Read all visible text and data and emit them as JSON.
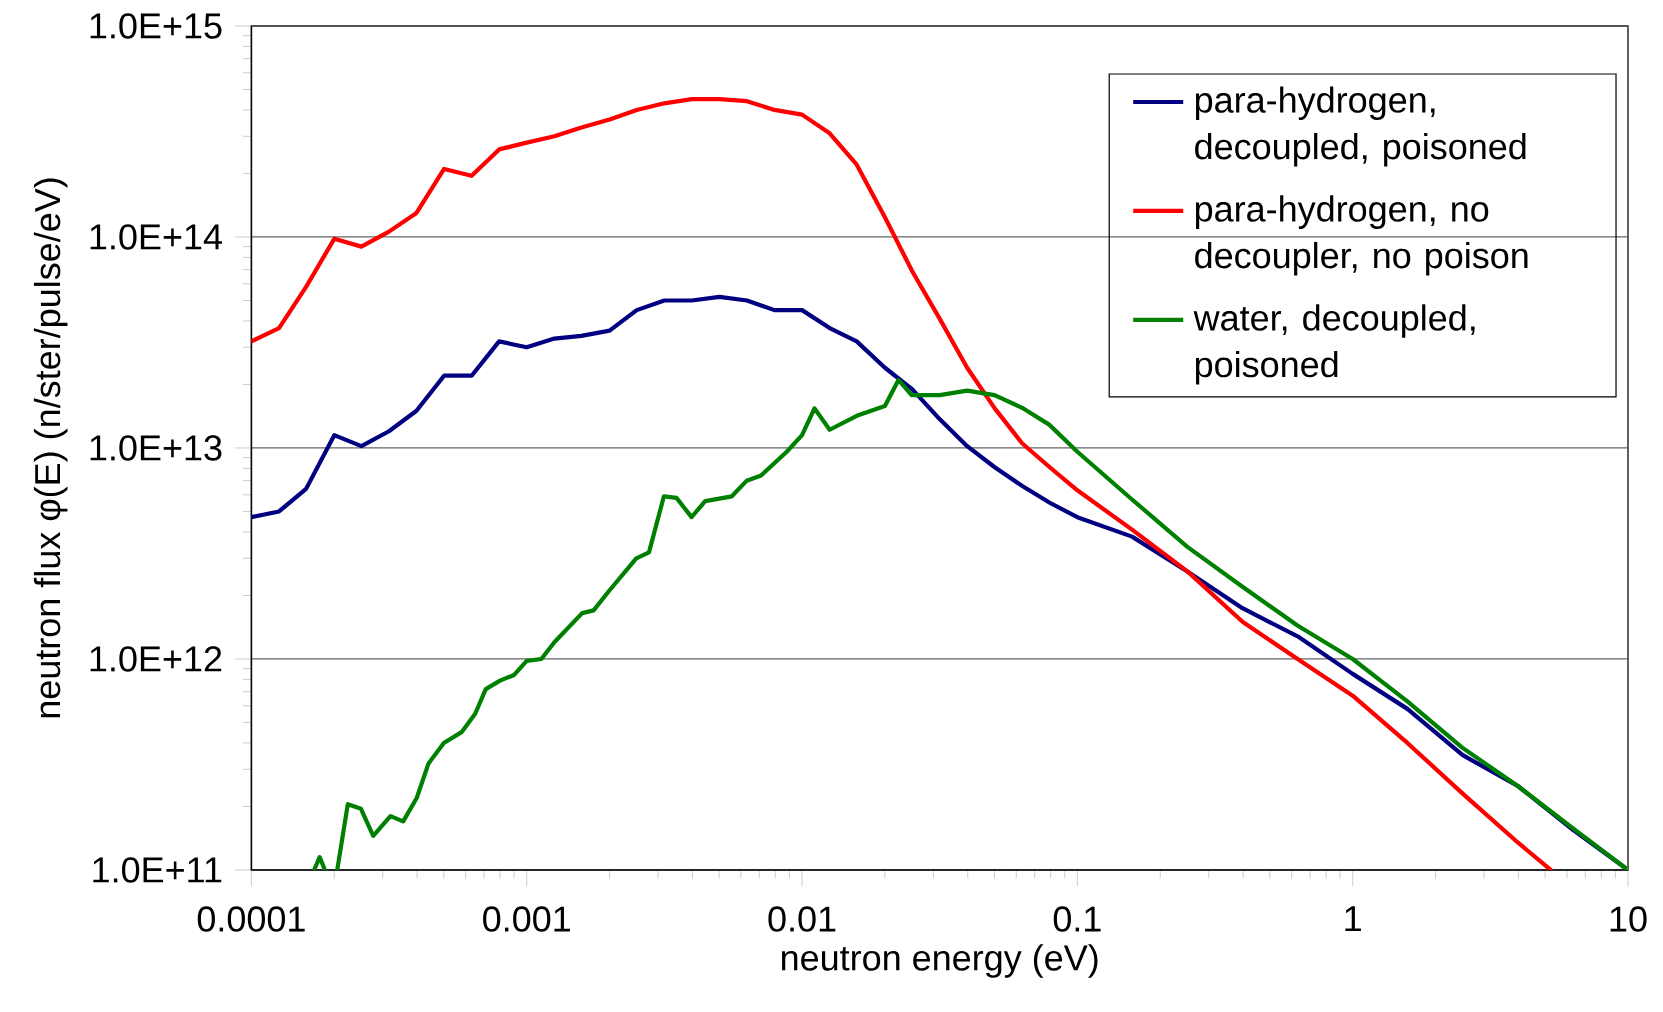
{
  "chart_data": {
    "type": "line",
    "xlabel": "neutron energy (eV)",
    "ylabel": "neutron flux φ(E) (n/ster/pulse/eV)",
    "log": "xy",
    "grid": "y",
    "legend": "top right",
    "xlim": [
      0.0001,
      10
    ],
    "xticks": [
      0.0001,
      0.001,
      0.01,
      0.1,
      1,
      10
    ],
    "ylim": [
      100000000000.0,
      1000000000000000.0
    ],
    "yticks": [
      {
        "value": 100000000000.0,
        "label": "1.0E+11"
      },
      {
        "value": 1000000000000.0,
        "label": "1.0E+12"
      },
      {
        "value": 10000000000000.0,
        "label": "1.0E+13"
      },
      {
        "value": 100000000000000.0,
        "label": "1.0E+14"
      },
      {
        "value": 1000000000000000.0,
        "label": "1.0E+15"
      }
    ],
    "series": [
      {
        "name": "para-hydrogen, decoupled, poisoned",
        "color": "#000080",
        "x": [
          0.0001,
          0.000126,
          0.000158,
          0.0002,
          0.000251,
          0.000316,
          0.000398,
          0.000501,
          0.000631,
          0.000794,
          0.001,
          0.00126,
          0.00158,
          0.002,
          0.00251,
          0.00316,
          0.00398,
          0.00501,
          0.00631,
          0.00794,
          0.01,
          0.0126,
          0.0158,
          0.02,
          0.0251,
          0.0316,
          0.0398,
          0.0501,
          0.0631,
          0.0794,
          0.1,
          0.158,
          0.251,
          0.398,
          0.631,
          1,
          1.58,
          2.51,
          3.98,
          6.31,
          10
        ],
        "values": [
          4700000000000.0,
          5000000000000.0,
          6400000000000.0,
          11500000000000.0,
          10200000000000.0,
          12000000000000.0,
          15000000000000.0,
          22000000000000.0,
          22000000000000.0,
          32000000000000.0,
          30000000000000.0,
          33000000000000.0,
          34000000000000.0,
          36000000000000.0,
          45000000000000.0,
          50000000000000.0,
          50000000000000.0,
          52000000000000.0,
          50000000000000.0,
          45000000000000.0,
          45000000000000.0,
          37000000000000.0,
          32000000000000.0,
          24000000000000.0,
          19000000000000.0,
          13700000000000.0,
          10200000000000.0,
          8100000000000.0,
          6600000000000.0,
          5500000000000.0,
          4700000000000.0,
          3800000000000.0,
          2600000000000.0,
          1740000000000.0,
          1280000000000.0,
          850000000000.0,
          580000000000.0,
          350000000000.0,
          250000000000.0,
          155000000000.0,
          100000000000.0
        ]
      },
      {
        "name": "para-hydrogen, no decoupler, no poison",
        "color": "#ff0000",
        "x": [
          0.0001,
          0.000126,
          0.000158,
          0.0002,
          0.000251,
          0.000316,
          0.000398,
          0.000501,
          0.000631,
          0.000794,
          0.001,
          0.00126,
          0.00158,
          0.002,
          0.00251,
          0.00316,
          0.00398,
          0.00501,
          0.00631,
          0.00794,
          0.01,
          0.0126,
          0.0158,
          0.02,
          0.0251,
          0.0316,
          0.0398,
          0.0501,
          0.0631,
          0.0794,
          0.1,
          0.158,
          0.251,
          0.398,
          0.631,
          1,
          1.58,
          2.51,
          3.98,
          5.24
        ],
        "values": [
          32000000000000.0,
          37000000000000.0,
          58000000000000.0,
          98000000000000.0,
          90000000000000.0,
          106000000000000.0,
          130000000000000.0,
          210000000000000.0,
          195000000000000.0,
          260000000000000.0,
          280000000000000.0,
          300000000000000.0,
          330000000000000.0,
          360000000000000.0,
          400000000000000.0,
          430000000000000.0,
          450000000000000.0,
          450000000000000.0,
          440000000000000.0,
          400000000000000.0,
          380000000000000.0,
          310000000000000.0,
          220000000000000.0,
          124000000000000.0,
          69000000000000.0,
          41000000000000.0,
          24000000000000.0,
          15400000000000.0,
          10500000000000.0,
          8100000000000.0,
          6300000000000.0,
          4100000000000.0,
          2600000000000.0,
          1500000000000.0,
          1000000000000.0,
          670000000000.0,
          400000000000.0,
          230000000000.0,
          135000000000.0,
          100000000000.0
        ]
      },
      {
        "name": "water, decoupled, poisoned",
        "color": "#008000",
        "x": [
          0.000169,
          0.000177,
          0.000185,
          0.000195,
          0.000205,
          0.000224,
          0.00025,
          0.000277,
          0.00032,
          0.000356,
          0.000399,
          0.00044,
          0.0005,
          0.00058,
          0.00065,
          0.00071,
          0.0008,
          0.0009,
          0.001,
          0.00113,
          0.00126,
          0.00159,
          0.00175,
          0.00199,
          0.0025,
          0.00278,
          0.00315,
          0.0035,
          0.00397,
          0.00445,
          0.00556,
          0.0063,
          0.0071,
          0.0088,
          0.01,
          0.0111,
          0.0126,
          0.0158,
          0.02,
          0.0224,
          0.025,
          0.0316,
          0.0398,
          0.05,
          0.063,
          0.079,
          0.1,
          0.158,
          0.251,
          0.398,
          0.63,
          1,
          1.58,
          2.5,
          3.98,
          6.3,
          10
        ],
        "values": [
          100000000000.0,
          115000000000.0,
          100000000000.0,
          null,
          100000000000.0,
          205000000000.0,
          195000000000.0,
          145000000000.0,
          180000000000.0,
          170000000000.0,
          220000000000.0,
          320000000000.0,
          400000000000.0,
          450000000000.0,
          550000000000.0,
          720000000000.0,
          790000000000.0,
          840000000000.0,
          980000000000.0,
          1000000000000.0,
          1200000000000.0,
          1650000000000.0,
          1700000000000.0,
          2100000000000.0,
          3000000000000.0,
          3200000000000.0,
          5900000000000.0,
          5800000000000.0,
          4700000000000.0,
          5600000000000.0,
          5900000000000.0,
          7000000000000.0,
          7400000000000.0,
          9600000000000.0,
          11500000000000.0,
          15400000000000.0,
          12200000000000.0,
          14200000000000.0,
          15800000000000.0,
          21000000000000.0,
          17800000000000.0,
          17800000000000.0,
          18700000000000.0,
          17800000000000.0,
          15500000000000.0,
          12900000000000.0,
          9600000000000.0,
          5700000000000.0,
          3400000000000.0,
          2200000000000.0,
          1440000000000.0,
          1000000000000.0,
          630000000000.0,
          380000000000.0,
          250000000000.0,
          158000000000.0,
          100000000000.0
        ]
      }
    ]
  }
}
